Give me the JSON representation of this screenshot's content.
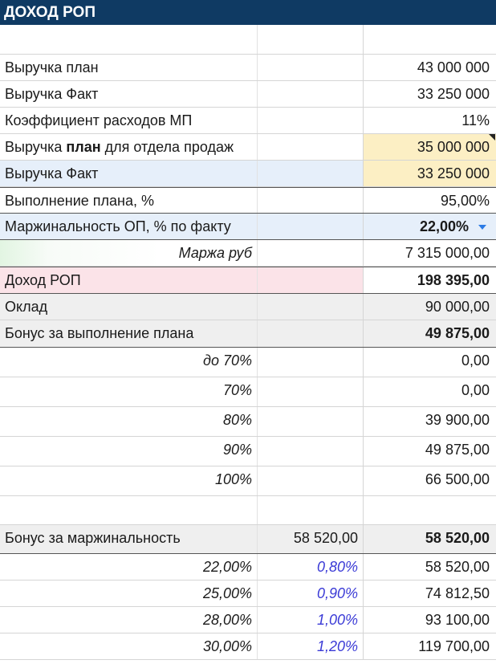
{
  "header": {
    "title": "ДОХОД РОП"
  },
  "rows": {
    "revenue_plan": {
      "label": "Выручка план",
      "value": "43 000 000"
    },
    "revenue_fact": {
      "label": "Выручка Факт",
      "value": "33 250 000"
    },
    "mp_coef": {
      "label": "Коэффициент расходов МП",
      "value": "11%"
    },
    "sales_plan": {
      "label_pre": "Выручка ",
      "label_bold": "план",
      "label_post": " для отдела продаж",
      "value": "35 000 000"
    },
    "revenue_fact2": {
      "label": "Выручка Факт",
      "value": "33 250 000"
    },
    "plan_exec": {
      "label": "Выполнение плана, %",
      "value": "95,00%"
    },
    "margin_pct": {
      "label": "Маржинальность ОП, % по факту",
      "value": "22,00%"
    },
    "margin_rub": {
      "label": "Маржа руб",
      "value": "7 315 000,00"
    },
    "rop_income": {
      "label": "Доход РОП",
      "value": "198 395,00"
    },
    "salary": {
      "label": "Оклад",
      "value": "90 000,00"
    },
    "plan_bonus": {
      "label": "Бонус за выполнение плана",
      "value": "49 875,00"
    },
    "margin_bonus": {
      "label": "Бонус за маржинальность",
      "mid": "58 520,00",
      "value": "58 520,00"
    }
  },
  "plan_tiers": [
    {
      "label": "до 70%",
      "value": "0,00"
    },
    {
      "label": "70%",
      "value": "0,00"
    },
    {
      "label": "80%",
      "value": "39 900,00"
    },
    {
      "label": "90%",
      "value": "49 875,00"
    },
    {
      "label": "100%",
      "value": "66 500,00"
    }
  ],
  "margin_tiers": [
    {
      "label": "22,00%",
      "rate": "0,80%",
      "value": "58 520,00"
    },
    {
      "label": "25,00%",
      "rate": "0,90%",
      "value": "74 812,50"
    },
    {
      "label": "28,00%",
      "rate": "1,00%",
      "value": "93 100,00"
    },
    {
      "label": "30,00%",
      "rate": "1,20%",
      "value": "119 700,00"
    }
  ],
  "colors": {
    "header_bg": "#0f3a63",
    "yellow": "#fcefc4",
    "light_blue": "#e6effa",
    "pink": "#fbe3e8",
    "dropdown_arrow": "#2c7be5",
    "rate_text": "#3a3ad6"
  },
  "icons": {
    "margin_dropdown": "chevron-down-icon"
  }
}
